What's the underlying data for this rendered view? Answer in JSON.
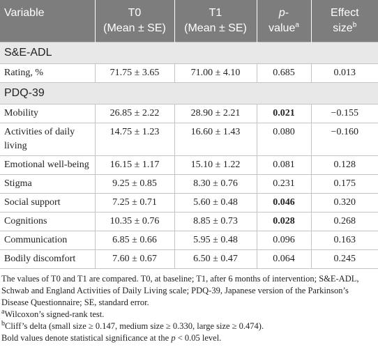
{
  "table": {
    "header": [
      {
        "lines": [
          "Variable"
        ]
      },
      {
        "lines": [
          "T0",
          "(Mean ± SE)"
        ]
      },
      {
        "lines": [
          "T1",
          "(Mean ± SE)"
        ]
      },
      {
        "italic": "p",
        "lines": [
          "-",
          "value"
        ],
        "note": "a"
      },
      {
        "lines": [
          "Effect",
          "size"
        ],
        "note": "b"
      }
    ],
    "sections": [
      {
        "title": "S&E-ADL",
        "rows": [
          {
            "cells": [
              "Rating, %",
              "71.75 ± 3.65",
              "71.00 ± 4.10",
              "0.685",
              "0.013"
            ],
            "significant": false
          }
        ]
      },
      {
        "title": "PDQ-39",
        "rows": [
          {
            "cells": [
              "Mobility",
              "26.85 ± 2.22",
              "28.90 ± 2.21",
              "0.021",
              "−0.155"
            ],
            "significant": true
          },
          {
            "cells": [
              "Activities of daily living",
              "14.75 ± 1.23",
              "16.60 ± 1.43",
              "0.080",
              "−0.160"
            ],
            "significant": false
          },
          {
            "cells": [
              "Emotional well-being",
              "16.15 ± 1.17",
              "15.10 ± 1.22",
              "0.081",
              "0.128"
            ],
            "significant": false
          },
          {
            "cells": [
              "Stigma",
              "9.25 ± 0.85",
              "8.30 ± 0.76",
              "0.231",
              "0.175"
            ],
            "significant": false
          },
          {
            "cells": [
              "Social support",
              "7.25 ± 0.71",
              "5.60 ± 0.48",
              "0.046",
              "0.320"
            ],
            "significant": true
          },
          {
            "cells": [
              "Cognitions",
              "10.35 ± 0.76",
              "8.85 ± 0.73",
              "0.028",
              "0.268"
            ],
            "significant": true
          },
          {
            "cells": [
              "Communication",
              "6.85 ± 0.66",
              "5.95 ± 0.48",
              "0.096",
              "0.163"
            ],
            "significant": false
          },
          {
            "cells": [
              "Bodily discomfort",
              "7.60 ± 0.67",
              "6.50 ± 0.47",
              "0.064",
              "0.245"
            ],
            "significant": false
          }
        ]
      }
    ]
  },
  "notes": [
    {
      "parts": [
        "The values of T0 and T1 are compared. T0, at baseline; T1, after 6 months of intervention; S&E-ADL, Schwab and England Activities of Daily Living scale; PDQ-39, Japanese version of the Parkinson’s Disease Questionnaire; SE, standard error."
      ]
    },
    {
      "mark": "a",
      "parts": [
        "Wilcoxon’s signed-rank test."
      ]
    },
    {
      "mark": "b",
      "parts": [
        "Cliff’s delta (small size ≥ 0.147, medium size ≥ 0.330, large size ≥ 0.474)."
      ]
    },
    {
      "parts": [
        "Bold values denote statistical significance at the ",
        "p",
        " < 0.05 level."
      ],
      "italic_part": 1
    }
  ]
}
